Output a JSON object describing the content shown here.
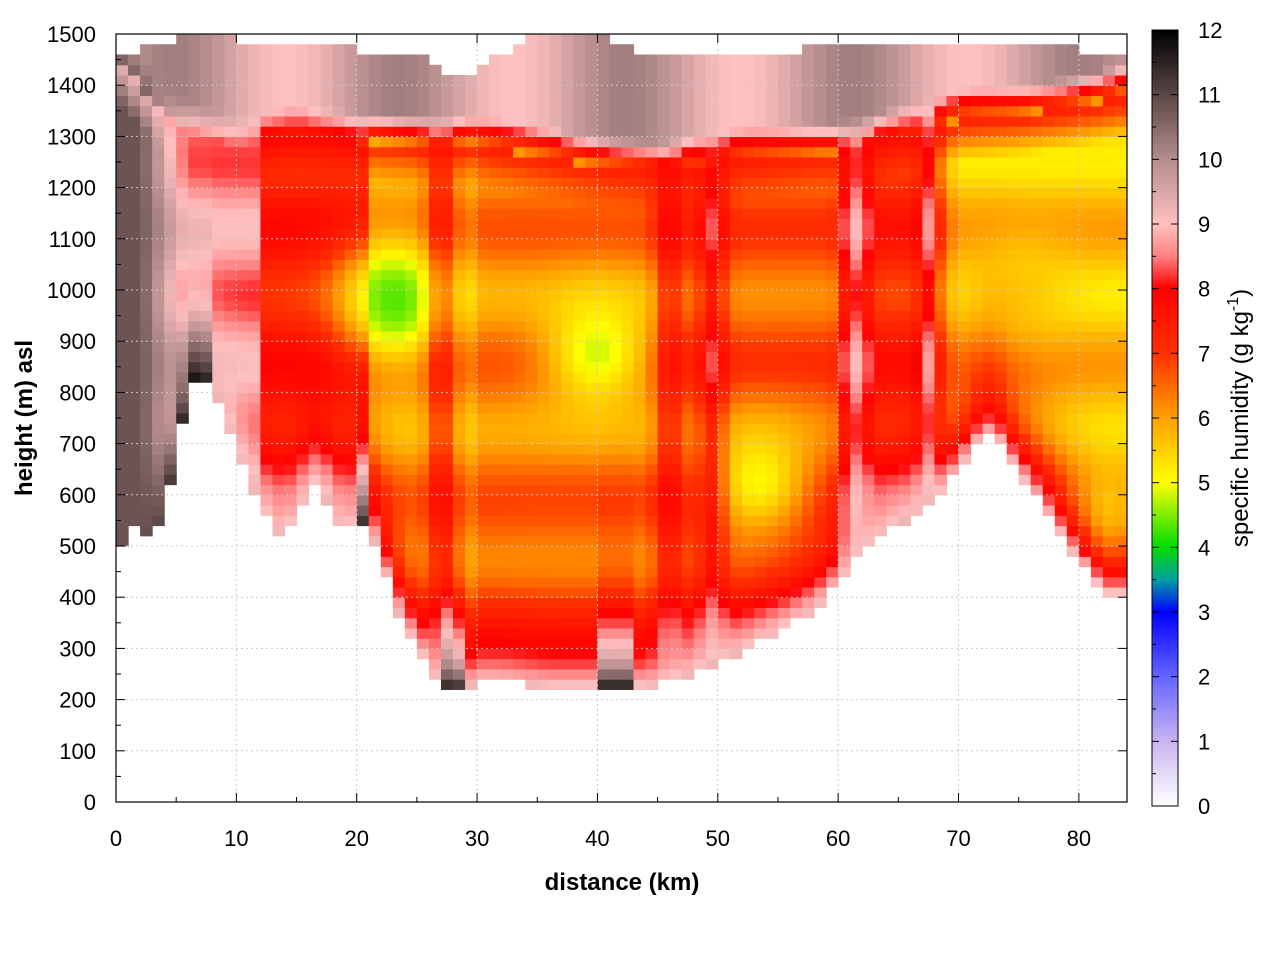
{
  "chart_data": {
    "type": "heatmap",
    "title": "",
    "xlabel": "distance (km)",
    "ylabel": "height (m) asl",
    "xlim": [
      0,
      84
    ],
    "ylim": [
      0,
      1500
    ],
    "x_ticks": [
      0,
      10,
      20,
      30,
      40,
      50,
      60,
      70,
      80
    ],
    "y_ticks": [
      0,
      100,
      200,
      300,
      400,
      500,
      600,
      700,
      800,
      900,
      1000,
      1100,
      1200,
      1300,
      1400,
      1500
    ],
    "grid": true,
    "colorbar": {
      "label_main": "specific humidity (g kg",
      "label_sup": "-1",
      "label_end": ")",
      "range": [
        0,
        12
      ],
      "ticks": [
        0,
        1,
        2,
        3,
        4,
        5,
        6,
        7,
        8,
        9,
        10,
        11,
        12
      ],
      "stops": [
        {
          "v": 0,
          "c": "#ffffff"
        },
        {
          "v": 1,
          "c": "#c8b4f0"
        },
        {
          "v": 2,
          "c": "#6464ff"
        },
        {
          "v": 3,
          "c": "#0000ff"
        },
        {
          "v": 3.5,
          "c": "#00a0a0"
        },
        {
          "v": 4,
          "c": "#00dc00"
        },
        {
          "v": 5,
          "c": "#ffff00"
        },
        {
          "v": 6,
          "c": "#ffa000"
        },
        {
          "v": 7,
          "c": "#ff3000"
        },
        {
          "v": 8,
          "c": "#ff0000"
        },
        {
          "v": 8.5,
          "c": "#ff8080"
        },
        {
          "v": 9,
          "c": "#ffc0c0"
        },
        {
          "v": 10,
          "c": "#b48c8c"
        },
        {
          "v": 11,
          "c": "#5a4646"
        },
        {
          "v": 12,
          "c": "#000000"
        }
      ]
    },
    "terrain": {
      "x": [
        0,
        0.5,
        1,
        2,
        2.5,
        3,
        4,
        5,
        6,
        6.5,
        7.5,
        8.5,
        10,
        11,
        12,
        13,
        14,
        15,
        16,
        17,
        18,
        19,
        20,
        21,
        22,
        23,
        24,
        25,
        26,
        27,
        28,
        30,
        32,
        34,
        36,
        38,
        40,
        42,
        44,
        46,
        48,
        50,
        52,
        54,
        56,
        58,
        60,
        62,
        64,
        66,
        68,
        70,
        71,
        72,
        73,
        74,
        75,
        76,
        78,
        80,
        81,
        82,
        83.5
      ],
      "y": [
        520,
        505,
        525,
        540,
        520,
        505,
        560,
        680,
        800,
        825,
        815,
        790,
        690,
        630,
        570,
        535,
        520,
        550,
        610,
        620,
        560,
        525,
        540,
        540,
        480,
        400,
        340,
        300,
        260,
        230,
        215,
        235,
        235,
        230,
        225,
        225,
        225,
        225,
        225,
        235,
        255,
        275,
        295,
        320,
        345,
        375,
        425,
        490,
        535,
        555,
        585,
        650,
        685,
        715,
        720,
        680,
        640,
        610,
        540,
        470,
        445,
        405,
        405
      ]
    },
    "top_boundary": {
      "x": [
        0,
        5,
        10,
        15,
        20,
        25,
        28,
        30,
        35,
        40,
        45,
        50,
        55,
        60,
        65,
        70,
        75,
        80,
        83.5
      ],
      "y": [
        1460,
        1490,
        1490,
        1480,
        1470,
        1460,
        1420,
        1430,
        1500,
        1500,
        1450,
        1460,
        1460,
        1480,
        1490,
        1480,
        1470,
        1470,
        1460
      ]
    },
    "cap_bottom": {
      "x": [
        0,
        5,
        10,
        15,
        20,
        25,
        30,
        35,
        40,
        45,
        50,
        55,
        60,
        65,
        70,
        75,
        80,
        83.5
      ],
      "y": [
        1450,
        1320,
        1280,
        1300,
        1290,
        1280,
        1280,
        1260,
        1240,
        1230,
        1250,
        1260,
        1270,
        1300,
        1330,
        1340,
        1360,
        1380
      ]
    },
    "dry_core_centers": [
      {
        "x": 23,
        "y": 980,
        "q": 4.3
      },
      {
        "x": 40,
        "y": 880,
        "q": 4.8
      },
      {
        "x": 53.5,
        "y": 620,
        "q": 4.8
      },
      {
        "x": 82,
        "y": 530,
        "q": 4.5
      },
      {
        "x": 75,
        "y": 1000,
        "q": 5.5
      }
    ]
  }
}
